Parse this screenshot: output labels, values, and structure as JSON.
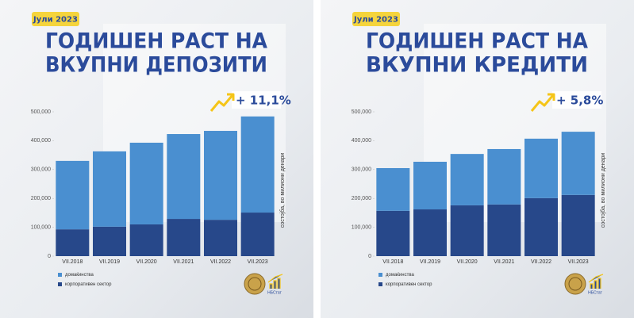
{
  "chart_data": [
    {
      "type": "stacked-bar",
      "badge": "Јули 2023",
      "title": [
        "ГОДИШЕН РАСТ НА",
        "ВКУПНИ ДЕПОЗИТИ"
      ],
      "growth": "+ 11,1%",
      "y_label": "состојба, во милиони денари",
      "logo_text": "НБСтат",
      "categories": [
        "VII.2018",
        "VII.2019",
        "VII.2020",
        "VII.2021",
        "VII.2022",
        "VII.2023"
      ],
      "series": [
        {
          "name": "домаќинства",
          "color": "#4a8fd0",
          "values": [
            237000,
            261000,
            283000,
            294000,
            308000,
            333000
          ]
        },
        {
          "name": "корпоративен сектор",
          "color": "#27488a",
          "values": [
            93000,
            102000,
            110000,
            129000,
            126000,
            151000
          ]
        }
      ],
      "ylim": [
        0,
        500000
      ],
      "yticks": [
        0,
        {
          "value": 100000,
          "label": "100,000"
        },
        {
          "value": 200000,
          "label": "200,000"
        },
        {
          "value": 300000,
          "label": "300,000"
        },
        {
          "value": 400000,
          "label": "400,000"
        },
        {
          "value": 500000,
          "label": "500,000"
        }
      ]
    },
    {
      "type": "stacked-bar",
      "badge": "Јули 2023",
      "title": [
        "ГОДИШЕН РАСТ НА",
        "ВКУПНИ КРЕДИТИ"
      ],
      "growth": "+ 5,8%",
      "y_label": "состојба, во милиони денари",
      "logo_text": "НБСтат",
      "categories": [
        "VII.2018",
        "VII.2019",
        "VII.2020",
        "VII.2021",
        "VII.2022",
        "VII.2023"
      ],
      "series": [
        {
          "name": "домаќинства",
          "color": "#4a8fd0",
          "values": [
            148000,
            165000,
            178000,
            192000,
            206000,
            219000
          ]
        },
        {
          "name": "корпоративен сектор",
          "color": "#27488a",
          "values": [
            157000,
            162000,
            176000,
            179000,
            201000,
            212000
          ]
        }
      ],
      "ylim": [
        0,
        500000
      ],
      "yticks": [
        0,
        {
          "value": 100000,
          "label": "100,000"
        },
        {
          "value": 200000,
          "label": "200,000"
        },
        {
          "value": 300000,
          "label": "300,000"
        },
        {
          "value": 400000,
          "label": "400,000"
        },
        {
          "value": 500000,
          "label": "500,000"
        }
      ]
    }
  ]
}
